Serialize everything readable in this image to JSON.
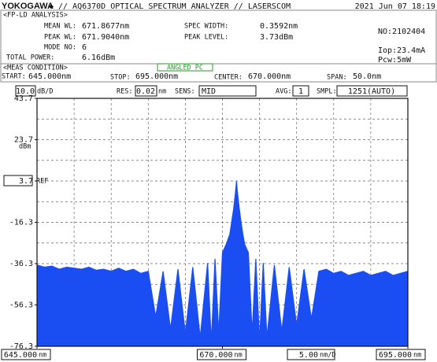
{
  "header": {
    "brand": "YOKOGAWA",
    "logo": "◆",
    "title": "// AQ6370D OPTICAL SPECTRUM ANALYZER // LASERSCOM",
    "date": "2021 Jun 07 18:19"
  },
  "analysis": {
    "title": "<FP-LD ANALYSIS>",
    "mean_wl_label": "MEAN WL:",
    "mean_wl": "671.8677nm",
    "peak_wl_label": "PEAK WL:",
    "peak_wl": "671.9040nm",
    "mode_no_label": "MODE NO:",
    "mode_no": "6",
    "total_power_label": "TOTAL POWER:",
    "total_power": "6.16dBm",
    "spec_width_label": "SPEC WIDTH:",
    "spec_width": "0.3592nm",
    "peak_level_label": "PEAK LEVEL:",
    "peak_level": "3.73dBm",
    "number": "NO:2102404",
    "iop": "Iop:23.4mA",
    "pcw": "Pcw:5mW"
  },
  "meas": {
    "title": "<MEAS CONDITION>",
    "connector": "ANGLED PC",
    "start_label": "START:",
    "start": "645.000nm",
    "stop_label": "STOP:",
    "stop": "695.000nm",
    "center_label": "CENTER:",
    "center": "670.000nm",
    "span_label": "SPAN:",
    "span": "50.0nm"
  },
  "settings": {
    "scale": "10.0",
    "scale_unit": "dB/D",
    "res_label": "RES:",
    "res": "0.02",
    "res_unit": "nm",
    "sens_label": "SENS:",
    "sens": "MID",
    "avg_label": "AVG:",
    "avg": "1",
    "smpl_label": "SMPL:",
    "smpl": "1251(AUTO)"
  },
  "chart_data": {
    "type": "area",
    "color": "#1a4ef2",
    "x": [
      645,
      646,
      647,
      648,
      649,
      650,
      651,
      652,
      653,
      654,
      655,
      656,
      657,
      658,
      659,
      660,
      661,
      662,
      663,
      664,
      665,
      666,
      667,
      668,
      668.5,
      669,
      669.5,
      670,
      670.5,
      671,
      671.25,
      671.5,
      671.75,
      671.9,
      672,
      672.25,
      672.5,
      672.75,
      673,
      673.5,
      674,
      674.5,
      675,
      675.5,
      676,
      677,
      678,
      679,
      680,
      681,
      682,
      683,
      684,
      685,
      686,
      687,
      688,
      689,
      690,
      691,
      692,
      693,
      694,
      695
    ],
    "values": [
      -37,
      -38,
      -37.5,
      -39,
      -38,
      -38.5,
      -39,
      -38,
      -39.5,
      -39,
      -40,
      -38.5,
      -40,
      -39,
      -41,
      -40,
      -62,
      -40,
      -68,
      -39,
      -70,
      -38,
      -72,
      -36,
      -74,
      -34,
      -70,
      -31,
      -27,
      -22,
      -16,
      -10,
      -2,
      3.73,
      -1,
      -9,
      -16,
      -22,
      -27,
      -31,
      -70,
      -34,
      -74,
      -36,
      -72,
      -37,
      -69,
      -38,
      -66,
      -39,
      -63,
      -40,
      -39,
      -41,
      -40,
      -42,
      -41,
      -40,
      -42,
      -41,
      -40,
      -42,
      -41,
      -40
    ],
    "xlim": [
      645,
      695
    ],
    "xticks": [
      {
        "value": 645,
        "label": "645.000"
      },
      {
        "value": 670,
        "label": "670.000"
      },
      {
        "value": 695,
        "label": "695.000"
      }
    ],
    "x_unit": "nm",
    "x_scale": "5.00",
    "x_scale_unit": "nm/D",
    "xgrid": [
      650,
      655,
      660,
      665,
      670,
      675,
      680,
      685,
      690
    ],
    "ylim": [
      -76.3,
      43.7
    ],
    "yticks": [
      43.7,
      23.7,
      3.7,
      -16.3,
      -36.3,
      -56.3,
      -76.3
    ],
    "ygrid": [
      33.7,
      23.7,
      13.7,
      3.7,
      -6.3,
      -16.3,
      -26.3,
      -36.3,
      -46.3,
      -56.3,
      -66.3
    ],
    "y_unit": "dBm",
    "ref": 3.7,
    "ref_label": "REF",
    "grid": true
  }
}
